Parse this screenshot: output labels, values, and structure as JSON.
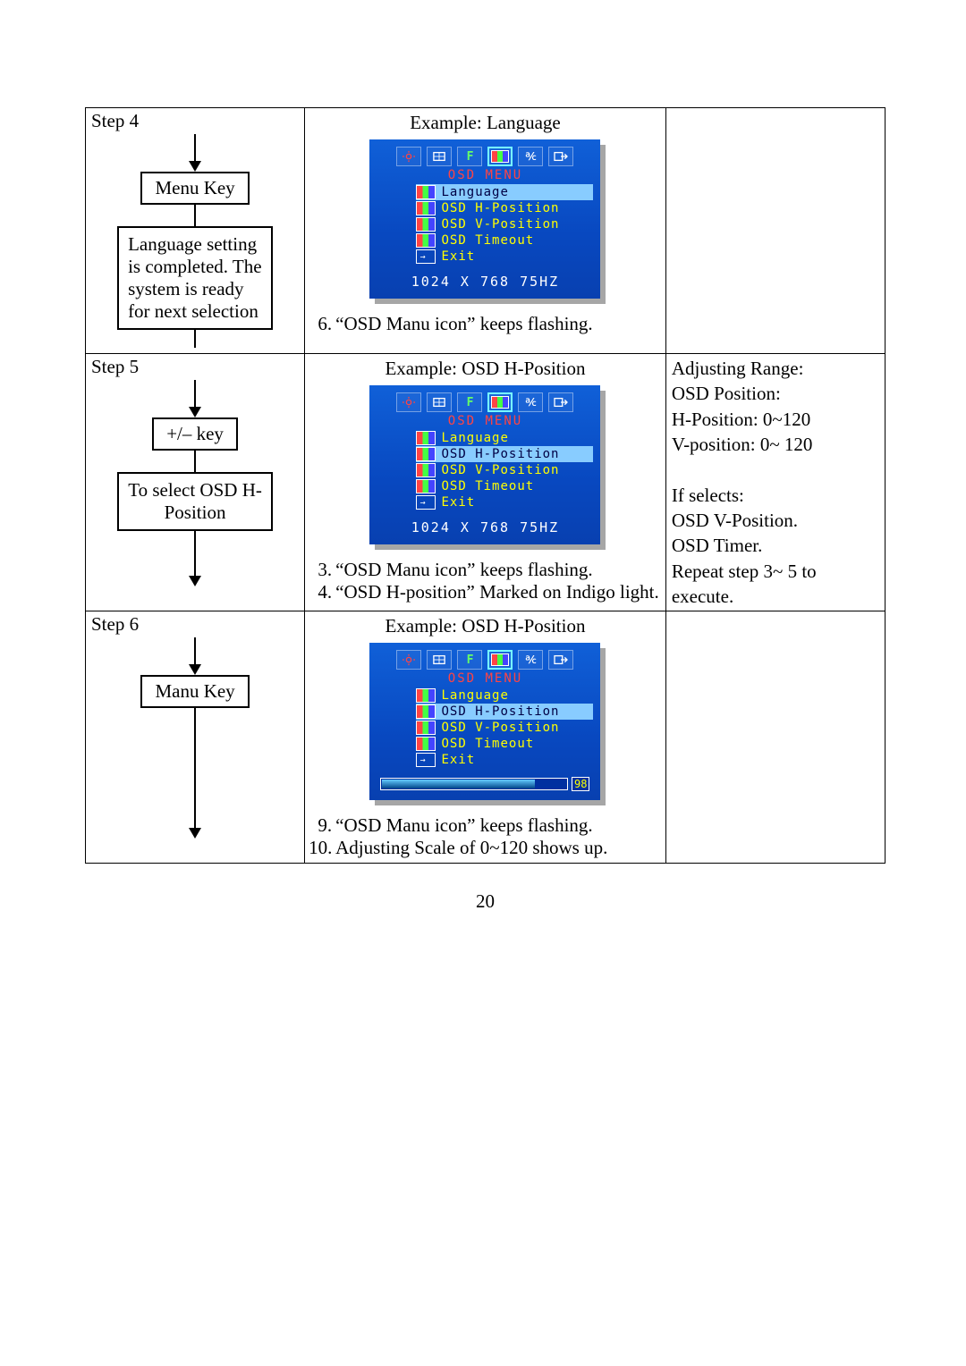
{
  "page_number": "20",
  "rows": [
    {
      "step_label": "Step 4",
      "flow": {
        "key_box": "Menu Key",
        "desc_box": "Language setting is completed. The system is ready for next selection",
        "tail_arrow": false
      },
      "example_label": "Example: Language",
      "osd": {
        "title": "OSD  MENU",
        "items": [
          {
            "icon": "osd",
            "label": "Language",
            "highlight": true
          },
          {
            "icon": "osd",
            "label": "OSD H-Position",
            "highlight": false
          },
          {
            "icon": "osd",
            "label": "OSD V-Position",
            "highlight": false
          },
          {
            "icon": "osd",
            "label": "OSD Timeout",
            "highlight": false
          },
          {
            "icon": "exit",
            "label": "Exit",
            "highlight": false
          }
        ],
        "resolution": "1024 X 768 75HZ",
        "bar": null
      },
      "notes": [
        {
          "n": "6.",
          "t": "“OSD Manu icon” keeps flashing."
        }
      ],
      "right": ""
    },
    {
      "step_label": "Step 5",
      "flow": {
        "key_box": "+/–  key",
        "desc_box": "To select OSD H-Position",
        "tail_arrow": true,
        "desc_center": true
      },
      "example_label": "Example: OSD H-Position",
      "osd": {
        "title": "OSD  MENU",
        "items": [
          {
            "icon": "osd",
            "label": "Language",
            "highlight": false
          },
          {
            "icon": "osd",
            "label": "OSD H-Position",
            "highlight": true
          },
          {
            "icon": "osd",
            "label": "OSD V-Position",
            "highlight": false
          },
          {
            "icon": "osd",
            "label": "OSD Timeout",
            "highlight": false
          },
          {
            "icon": "exit",
            "label": "Exit",
            "highlight": false
          }
        ],
        "resolution": "1024 X 768 75HZ",
        "bar": null
      },
      "notes": [
        {
          "n": "3.",
          "t": "“OSD Manu icon” keeps flashing."
        },
        {
          "n": "4.",
          "t": "“OSD H-position” Marked on Indigo light."
        }
      ],
      "right": "Adjusting Range:\nOSD Position:\nH-Position: 0~120\nV-position: 0~ 120\n\nIf selects:\nOSD V-Position.\nOSD Timer.\nRepeat step 3~ 5 to execute."
    },
    {
      "step_label": "Step 6",
      "flow": {
        "key_box": "Manu Key",
        "desc_box": null,
        "tail_arrow": true,
        "tail_long": true
      },
      "example_label": "Example: OSD H-Position",
      "osd": {
        "title": "OSD  MENU",
        "items": [
          {
            "icon": "osd",
            "label": "Language",
            "highlight": false
          },
          {
            "icon": "osd",
            "label": "OSD H-Position",
            "highlight": true
          },
          {
            "icon": "osd",
            "label": "OSD V-Position",
            "highlight": false
          },
          {
            "icon": "osd",
            "label": "OSD Timeout",
            "highlight": false
          },
          {
            "icon": "exit",
            "label": "Exit",
            "highlight": false
          }
        ],
        "resolution": null,
        "bar": {
          "value": "98",
          "pct": 82
        }
      },
      "notes": [
        {
          "n": "9.",
          "t": "“OSD Manu icon” keeps flashing."
        },
        {
          "n": "10.",
          "t": "Adjusting Scale of 0~120 shows up."
        }
      ],
      "right": ""
    }
  ],
  "osd_top_icons": [
    "brightness",
    "adjust",
    "f",
    "osd",
    "percent",
    "exit"
  ]
}
